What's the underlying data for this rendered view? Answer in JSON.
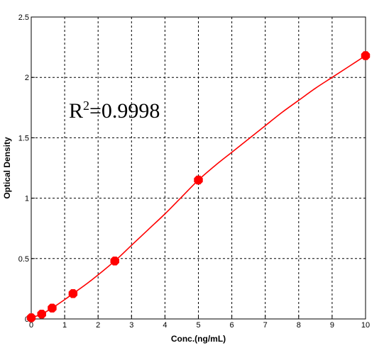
{
  "chart_data": {
    "type": "line",
    "title": "",
    "xlabel": "Conc.(ng/mL)",
    "ylabel": "Optical Density",
    "xlim": [
      0,
      10
    ],
    "ylim": [
      0,
      2.5
    ],
    "x_ticks": [
      0,
      1,
      2,
      3,
      4,
      5,
      6,
      7,
      8,
      9,
      10
    ],
    "y_ticks": [
      0,
      0.5,
      1,
      1.5,
      2,
      2.5
    ],
    "x_tick_labels": [
      "0",
      "1",
      "2",
      "3",
      "4",
      "5",
      "6",
      "7",
      "8",
      "9",
      "10"
    ],
    "y_tick_labels": [
      "0",
      "0.5",
      "1",
      "1.5",
      "2",
      "2.5"
    ],
    "grid": true,
    "annotation": {
      "base": "R",
      "sup": "2",
      "rest": "=0.9998"
    },
    "colors": {
      "series": "#ff0000",
      "grid": "#000000",
      "axis": "#000000"
    },
    "series": [
      {
        "x": [
          0,
          0.3125,
          0.625,
          1.25,
          2.5,
          5,
          10
        ],
        "y": [
          0.01,
          0.04,
          0.09,
          0.21,
          0.48,
          1.15,
          2.18
        ]
      }
    ],
    "fit_curve": {
      "x": [
        0,
        0.3125,
        0.625,
        1,
        1.25,
        1.75,
        2.5,
        3,
        3.5,
        4,
        4.5,
        5,
        5.5,
        6,
        6.5,
        7,
        7.5,
        8,
        8.5,
        9,
        9.5,
        10
      ],
      "y": [
        0.01,
        0.04,
        0.09,
        0.16,
        0.21,
        0.31,
        0.48,
        0.61,
        0.74,
        0.87,
        1.01,
        1.15,
        1.27,
        1.38,
        1.49,
        1.6,
        1.71,
        1.81,
        1.91,
        2.0,
        2.09,
        2.18
      ]
    }
  }
}
